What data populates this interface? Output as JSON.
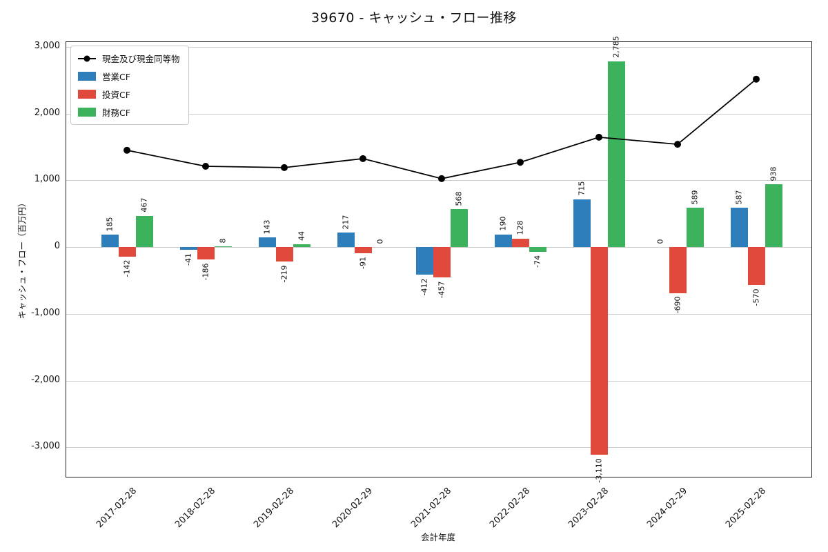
{
  "chart_data": {
    "type": "bar+line",
    "title": "39670 - キャッシュ・フロー推移",
    "xlabel": "会計年度",
    "ylabel": "キャッシュ・フロー（百万円）",
    "categories": [
      "2017-02-28",
      "2018-02-28",
      "2019-02-28",
      "2020-02-29",
      "2021-02-28",
      "2022-02-28",
      "2023-02-28",
      "2024-02-29",
      "2025-02-28"
    ],
    "series": [
      {
        "key": "operating",
        "name": "営業CF",
        "type": "bar",
        "color": "#2e7ebc",
        "values": [
          185,
          -41,
          143,
          217,
          -412,
          190,
          715,
          0,
          587
        ]
      },
      {
        "key": "investing",
        "name": "投資CF",
        "type": "bar",
        "color": "#e2493d",
        "values": [
          -142,
          -186,
          -219,
          -91,
          -457,
          128,
          -3110,
          -690,
          -570
        ]
      },
      {
        "key": "financing",
        "name": "財務CF",
        "type": "bar",
        "color": "#3cb25c",
        "values": [
          467,
          8,
          44,
          0,
          568,
          -74,
          2785,
          589,
          938
        ]
      },
      {
        "key": "cash",
        "name": "現金及び現金同等物",
        "type": "line",
        "color": "#000000",
        "values": [
          1450,
          1210,
          1190,
          1325,
          1025,
          1270,
          1645,
          1540,
          2515
        ]
      }
    ],
    "yticks": [
      -3000,
      -2000,
      -1000,
      0,
      1000,
      2000,
      3000
    ],
    "ylim": [
      -3440,
      3070
    ],
    "grid": true,
    "legend_position": "upper-left",
    "bar_value_labels": true
  }
}
